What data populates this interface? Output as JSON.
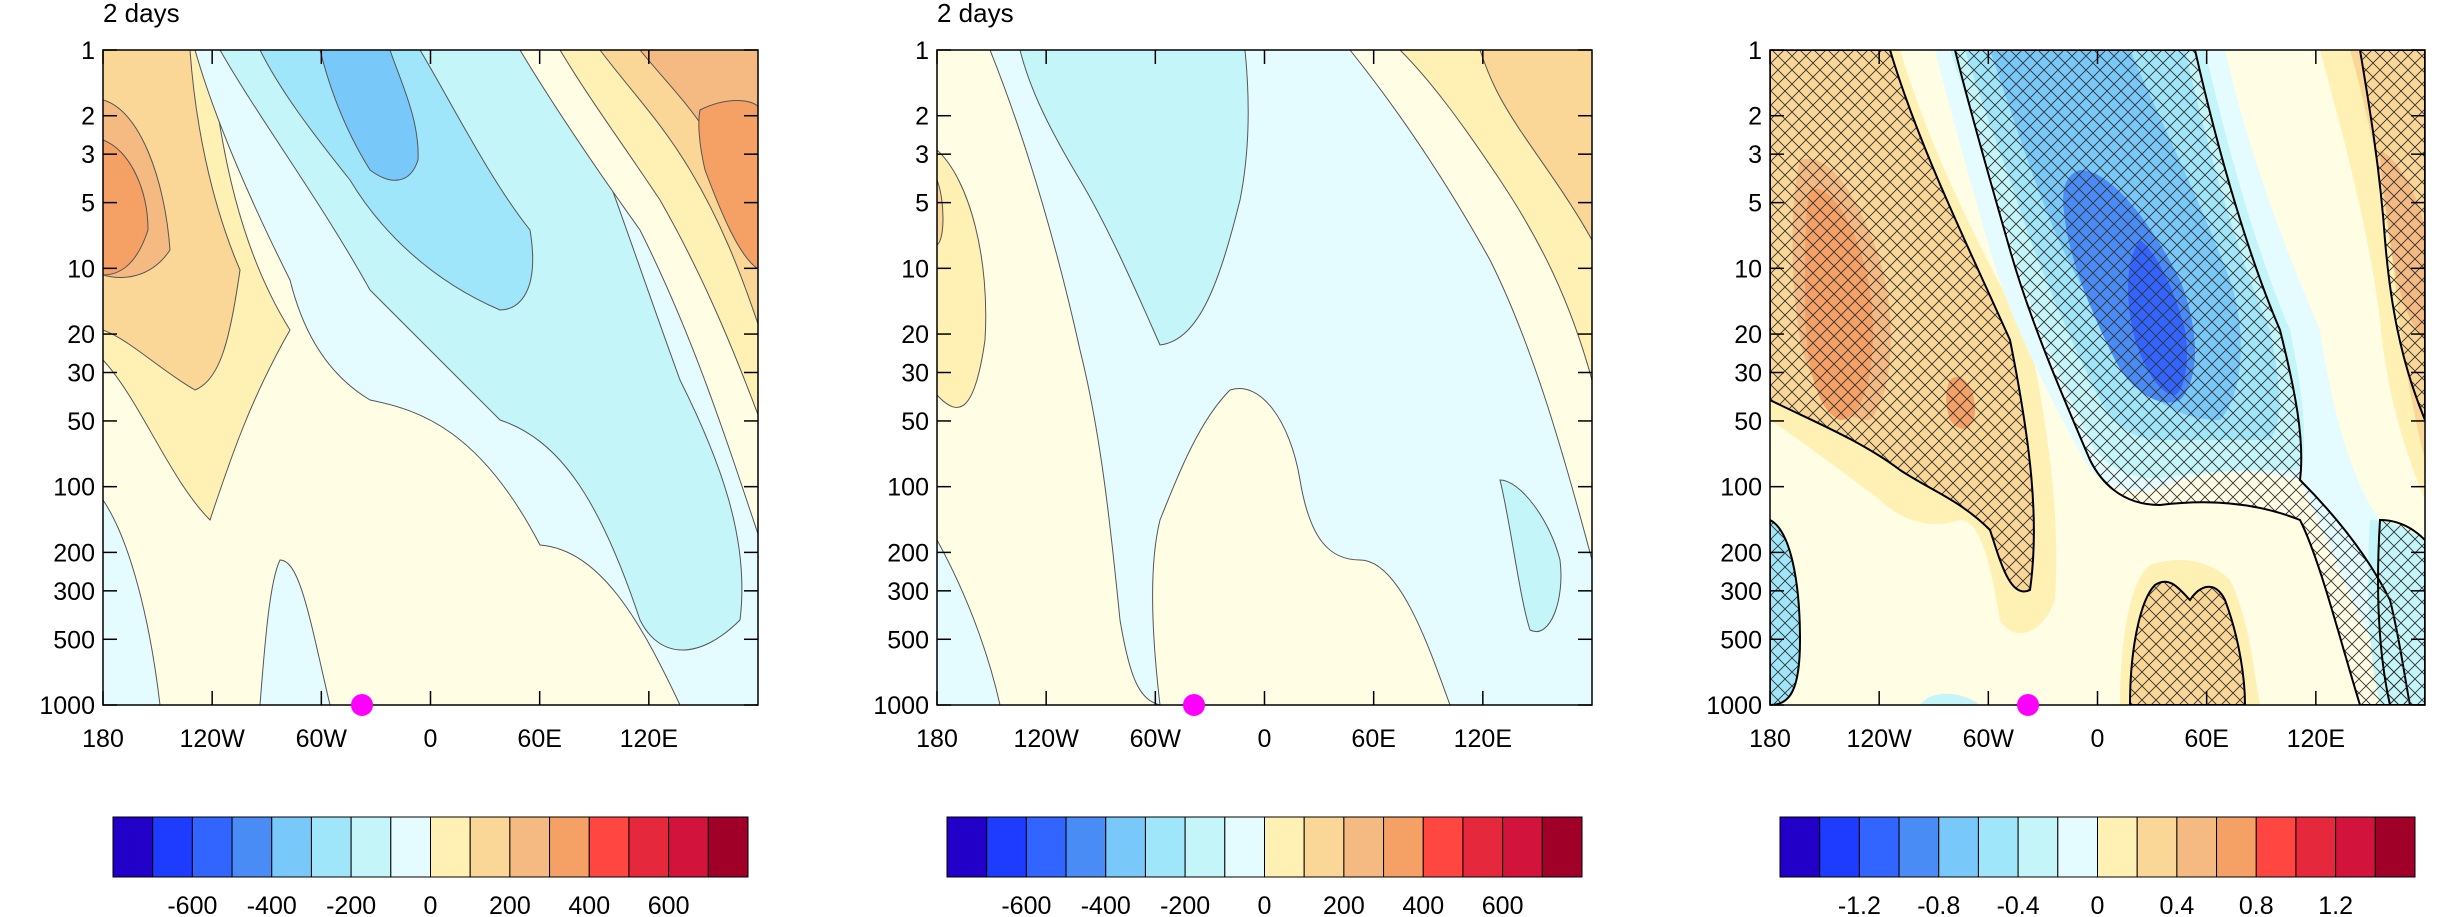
{
  "chart_data": [
    {
      "type": "heatmap",
      "title": "2 days",
      "xlabel": "",
      "ylabel": "",
      "x_tick_labels": [
        "180",
        "120W",
        "60W",
        "0",
        "60E",
        "120E"
      ],
      "y_tick_labels": [
        "1",
        "2",
        "3",
        "5",
        "10",
        "20",
        "30",
        "50",
        "100",
        "200",
        "300",
        "500",
        "1000"
      ],
      "y_scale": "log",
      "xlim": [
        -180,
        180
      ],
      "ylim": [
        1000,
        1
      ],
      "marker": {
        "x": -38,
        "y": 1000,
        "color": "#ff00ff"
      },
      "colorbar_labels": [
        "-600",
        "-400",
        "-200",
        "0",
        "200",
        "400",
        "600"
      ],
      "colorbar_levels": [
        -700,
        -600,
        -500,
        -400,
        -300,
        -200,
        -100,
        0,
        100,
        200,
        300,
        400,
        500,
        600,
        700
      ]
    },
    {
      "type": "heatmap",
      "title": "2 days",
      "xlabel": "",
      "ylabel": "",
      "x_tick_labels": [
        "180",
        "120W",
        "60W",
        "0",
        "60E",
        "120E"
      ],
      "y_tick_labels": [
        "1",
        "2",
        "3",
        "5",
        "10",
        "20",
        "30",
        "50",
        "100",
        "200",
        "300",
        "500",
        "1000"
      ],
      "y_scale": "log",
      "xlim": [
        -180,
        180
      ],
      "ylim": [
        1000,
        1
      ],
      "marker": {
        "x": -38,
        "y": 1000,
        "color": "#ff00ff"
      },
      "colorbar_labels": [
        "-600",
        "-400",
        "-200",
        "0",
        "200",
        "400",
        "600"
      ],
      "colorbar_levels": [
        -700,
        -600,
        -500,
        -400,
        -300,
        -200,
        -100,
        0,
        100,
        200,
        300,
        400,
        500,
        600,
        700
      ]
    },
    {
      "type": "heatmap",
      "title": "",
      "xlabel": "",
      "ylabel": "",
      "x_tick_labels": [
        "180",
        "120W",
        "60W",
        "0",
        "60E",
        "120E"
      ],
      "y_tick_labels": [
        "1",
        "2",
        "3",
        "5",
        "10",
        "20",
        "30",
        "50",
        "100",
        "200",
        "300",
        "500",
        "1000"
      ],
      "y_scale": "log",
      "xlim": [
        -180,
        180
      ],
      "ylim": [
        1000,
        1
      ],
      "hatching": "cross-hatched regions",
      "marker": {
        "x": -38,
        "y": 1000,
        "color": "#ff00ff"
      },
      "colorbar_labels": [
        "-1.2",
        "-0.8",
        "-0.4",
        "0",
        "0.4",
        "0.8",
        "1.2"
      ],
      "colorbar_levels": [
        -1.4,
        -1.2,
        -1.0,
        -0.8,
        -0.6,
        -0.4,
        -0.2,
        0,
        0.2,
        0.4,
        0.6,
        0.8,
        1.0,
        1.2,
        1.4
      ]
    }
  ],
  "palette": [
    "#2300c8",
    "#1e3cff",
    "#3264ff",
    "#4a8cf5",
    "#78c8fa",
    "#a0e6fa",
    "#c4f5f8",
    "#e4fcff",
    "#fffde4",
    "#fff0b4",
    "#fad796",
    "#f5b982",
    "#f5a064",
    "#ff4640",
    "#e6283c",
    "#d2143c",
    "#a00028"
  ]
}
